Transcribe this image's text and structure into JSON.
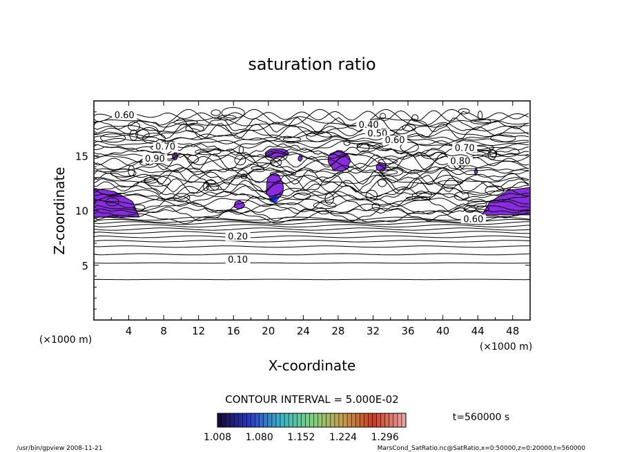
{
  "chart_data": {
    "type": "contour",
    "title": "saturation ratio",
    "xlabel": "X-coordinate",
    "ylabel": "Z-coordinate",
    "x_unit": "(×1000 m)",
    "z_unit": "(×1000 m)",
    "xlim": [
      0,
      50
    ],
    "ylim": [
      0,
      20
    ],
    "x_ticks": [
      4,
      8,
      12,
      16,
      20,
      24,
      28,
      32,
      36,
      40,
      44,
      48
    ],
    "y_ticks": [
      5,
      10,
      15
    ],
    "grid": false,
    "contour_interval_text": "CONTOUR INTERVAL = 5.000E-02",
    "contour_labels": [
      {
        "x": 3.5,
        "z": 18.5,
        "label": "0.60"
      },
      {
        "x": 8.2,
        "z": 15.6,
        "label": "0.70"
      },
      {
        "x": 7.0,
        "z": 14.5,
        "label": "0.90"
      },
      {
        "x": 31.5,
        "z": 17.6,
        "label": "0.40"
      },
      {
        "x": 32.5,
        "z": 16.8,
        "label": "0.50"
      },
      {
        "x": 34.5,
        "z": 16.2,
        "label": "0.60"
      },
      {
        "x": 42.5,
        "z": 15.5,
        "label": "0.70"
      },
      {
        "x": 42.0,
        "z": 14.3,
        "label": "0.80"
      },
      {
        "x": 43.5,
        "z": 9.0,
        "label": "0.60"
      },
      {
        "x": 16.5,
        "z": 7.4,
        "label": "0.20"
      },
      {
        "x": 16.5,
        "z": 5.3,
        "label": "0.10"
      }
    ],
    "bands_z": [
      3.7,
      5.2,
      6.0,
      6.7,
      7.2,
      7.6,
      8.0,
      8.3,
      8.6,
      8.85,
      9.05,
      9.25
    ],
    "supersaturated_regions": [
      {
        "name": "left-edge",
        "x": [
          0,
          5.2
        ],
        "z": [
          9.4,
          12.0
        ],
        "value": "1.1"
      },
      {
        "name": "right-edge",
        "x": [
          44.5,
          50
        ],
        "z": [
          9.6,
          12.1
        ],
        "value": "1.1"
      },
      {
        "name": "center-column",
        "x": [
          19.7,
          21.7
        ],
        "z": [
          10.7,
          13.5
        ],
        "value": "1.05"
      },
      {
        "name": "center-top",
        "x": [
          19.5,
          22.5
        ],
        "z": [
          14.8,
          15.7
        ],
        "value": "1.05"
      },
      {
        "name": "mid-top",
        "x": [
          26.8,
          29.5
        ],
        "z": [
          13.5,
          15.5
        ],
        "value": "1.05"
      },
      {
        "name": "small-1",
        "x": [
          16.0,
          17.3
        ],
        "z": [
          10.1,
          10.9
        ],
        "value": "1.05"
      },
      {
        "name": "small-2",
        "x": [
          32.3,
          33.5
        ],
        "z": [
          13.6,
          14.4
        ],
        "value": "1.05"
      },
      {
        "name": "small-3",
        "x": [
          23.4,
          23.9
        ],
        "z": [
          14.5,
          15.0
        ],
        "value": "1.05"
      },
      {
        "name": "small-4",
        "x": [
          9.0,
          9.6
        ],
        "z": [
          14.6,
          15.3
        ],
        "value": "1.05"
      },
      {
        "name": "small-5",
        "x": [
          43.6,
          44.0
        ],
        "z": [
          13.3,
          13.8
        ],
        "value": "1.05"
      }
    ],
    "colorbar": {
      "range": [
        1.008,
        1.332
      ],
      "tick_labels": [
        "1.008",
        "1.080",
        "1.152",
        "1.224",
        "1.296"
      ],
      "colors": [
        "#1a0a3c",
        "#2c3cc8",
        "#3cb4c8",
        "#7cd27c",
        "#c8a050",
        "#c83c1e",
        "#e8a0a0"
      ]
    },
    "time_label": "t=560000  s",
    "footer_left": "/usr/bin/gpview  2008-11-21",
    "footer_right": "MarsCond_SatRatio.nc@SatRatio,x=0:50000,z=0:20000,t=560000",
    "fill_color": "#8a2be2"
  }
}
